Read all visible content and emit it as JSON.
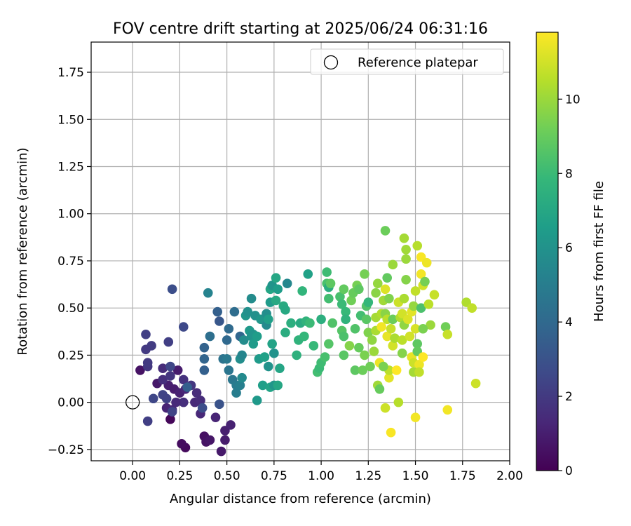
{
  "chart_data": {
    "type": "scatter",
    "title": "FOV centre drift starting at 2025/06/24 06:31:16",
    "xlabel": "Angular distance from reference (arcmin)",
    "ylabel": "Rotation from reference (arcmin)",
    "xlim": [
      -0.22,
      2.0
    ],
    "ylim": [
      -0.31,
      1.91
    ],
    "xticks": [
      0.0,
      0.25,
      0.5,
      0.75,
      1.0,
      1.25,
      1.5,
      1.75,
      2.0
    ],
    "xtick_labels": [
      "0.00",
      "0.25",
      "0.50",
      "0.75",
      "1.00",
      "1.25",
      "1.50",
      "1.75",
      "2.00"
    ],
    "yticks": [
      -0.25,
      0.0,
      0.25,
      0.5,
      0.75,
      1.0,
      1.25,
      1.5,
      1.75
    ],
    "ytick_labels": [
      "−0.25",
      "0.00",
      "0.25",
      "0.50",
      "0.75",
      "1.00",
      "1.25",
      "1.50",
      "1.75"
    ],
    "grid": true,
    "legend": {
      "placement": "top-right",
      "entries": [
        {
          "label": "Reference platepar",
          "marker": "open-circle"
        }
      ]
    },
    "reference_point": {
      "x": 0.0,
      "y": 0.0
    },
    "colorbar": {
      "label": "Hours from first FF file",
      "colormap": "viridis",
      "range": [
        0,
        11.8
      ],
      "ticks": [
        0,
        2,
        4,
        6,
        8,
        10
      ],
      "tick_labels": [
        "0",
        "2",
        "4",
        "6",
        "8",
        "10"
      ]
    },
    "colormap_stops": [
      "#440154",
      "#482878",
      "#3e4a89",
      "#31688e",
      "#26828e",
      "#1f9e89",
      "#35b779",
      "#6ece58",
      "#b5de2b",
      "#fde725"
    ],
    "point_columns": [
      "x",
      "y",
      "hours"
    ],
    "points": [
      [
        0.2,
        -0.09,
        0.2
      ],
      [
        0.28,
        -0.24,
        0.3
      ],
      [
        0.26,
        -0.22,
        0.4
      ],
      [
        0.38,
        -0.18,
        0.5
      ],
      [
        0.39,
        -0.21,
        0.6
      ],
      [
        0.41,
        -0.2,
        0.7
      ],
      [
        0.47,
        -0.26,
        0.8
      ],
      [
        0.49,
        -0.2,
        0.9
      ],
      [
        0.49,
        -0.15,
        1.0
      ],
      [
        0.52,
        -0.12,
        1.1
      ],
      [
        0.44,
        -0.08,
        1.2
      ],
      [
        0.36,
        -0.06,
        1.3
      ],
      [
        0.33,
        0.0,
        1.4
      ],
      [
        0.36,
        0.01,
        1.5
      ],
      [
        0.27,
        0.0,
        1.6
      ],
      [
        0.18,
        -0.03,
        1.2
      ],
      [
        0.21,
        -0.04,
        1.3
      ],
      [
        0.23,
        0.0,
        1.4
      ],
      [
        0.19,
        0.09,
        1.0
      ],
      [
        0.22,
        0.07,
        0.9
      ],
      [
        0.25,
        0.05,
        1.1
      ],
      [
        0.28,
        0.07,
        1.3
      ],
      [
        0.13,
        0.1,
        0.8
      ],
      [
        0.16,
        0.12,
        1.6
      ],
      [
        0.2,
        0.14,
        1.8
      ],
      [
        0.24,
        0.17,
        0.9
      ],
      [
        0.27,
        0.12,
        1.7
      ],
      [
        0.31,
        0.09,
        1.9
      ],
      [
        0.34,
        0.05,
        1.5
      ],
      [
        0.04,
        0.17,
        0.6
      ],
      [
        0.08,
        0.19,
        1.9
      ],
      [
        0.08,
        0.21,
        2.0
      ],
      [
        0.16,
        0.18,
        1.5
      ],
      [
        0.1,
        0.3,
        2.1
      ],
      [
        0.07,
        0.28,
        2.0
      ],
      [
        0.07,
        0.36,
        2.2
      ],
      [
        0.19,
        0.32,
        2.2
      ],
      [
        0.2,
        0.19,
        2.5
      ],
      [
        0.08,
        -0.1,
        2.2
      ],
      [
        0.11,
        0.02,
        2.5
      ],
      [
        0.16,
        0.04,
        2.4
      ],
      [
        0.18,
        0.02,
        2.3
      ],
      [
        0.21,
        -0.05,
        2.4
      ],
      [
        0.29,
        0.08,
        3.6
      ],
      [
        0.37,
        -0.03,
        2.8
      ],
      [
        0.46,
        -0.01,
        3.0
      ],
      [
        0.27,
        0.4,
        2.6
      ],
      [
        0.21,
        0.6,
        2.8
      ],
      [
        0.38,
        0.17,
        3.6
      ],
      [
        0.38,
        0.23,
        3.8
      ],
      [
        0.38,
        0.29,
        3.7
      ],
      [
        0.4,
        0.58,
        5.3
      ],
      [
        0.41,
        0.35,
        4.3
      ],
      [
        0.45,
        0.48,
        3.6
      ],
      [
        0.46,
        0.43,
        3.2
      ],
      [
        0.48,
        0.23,
        4.5
      ],
      [
        0.5,
        0.33,
        4.0
      ],
      [
        0.5,
        0.23,
        4.8
      ],
      [
        0.51,
        0.39,
        4.1
      ],
      [
        0.51,
        0.17,
        4.6
      ],
      [
        0.53,
        0.12,
        4.7
      ],
      [
        0.54,
        0.48,
        4.2
      ],
      [
        0.55,
        0.09,
        4.9
      ],
      [
        0.55,
        0.05,
        5.0
      ],
      [
        0.57,
        0.35,
        3.9
      ],
      [
        0.57,
        0.09,
        5.1
      ],
      [
        0.58,
        0.13,
        5.6
      ],
      [
        0.57,
        0.23,
        5.8
      ],
      [
        0.58,
        0.25,
        5.4
      ],
      [
        0.59,
        0.33,
        5.7
      ],
      [
        0.6,
        0.46,
        6.2
      ],
      [
        0.61,
        0.48,
        5.9
      ],
      [
        0.62,
        0.38,
        6.3
      ],
      [
        0.63,
        0.55,
        5.7
      ],
      [
        0.63,
        0.35,
        6.0
      ],
      [
        0.64,
        0.31,
        6.4
      ],
      [
        0.64,
        0.36,
        6.1
      ],
      [
        0.65,
        0.46,
        5.9
      ],
      [
        0.66,
        0.35,
        6.5
      ],
      [
        0.66,
        0.01,
        6.3
      ],
      [
        0.67,
        0.23,
        6.4
      ],
      [
        0.68,
        0.44,
        6.2
      ],
      [
        0.69,
        0.09,
        6.6
      ],
      [
        0.7,
        0.24,
        6.7
      ],
      [
        0.71,
        0.41,
        5.6
      ],
      [
        0.71,
        0.47,
        5.8
      ],
      [
        0.72,
        0.19,
        6.0
      ],
      [
        0.72,
        0.44,
        6.6
      ],
      [
        0.73,
        0.53,
        6.4
      ],
      [
        0.73,
        0.08,
        6.8
      ],
      [
        0.73,
        0.6,
        6.9
      ],
      [
        0.74,
        0.31,
        6.8
      ],
      [
        0.74,
        0.62,
        6.1
      ],
      [
        0.75,
        0.26,
        6.0
      ],
      [
        0.75,
        0.09,
        6.2
      ],
      [
        0.76,
        0.66,
        7.0
      ],
      [
        0.76,
        0.54,
        7.1
      ],
      [
        0.77,
        0.6,
        6.5
      ],
      [
        0.77,
        0.09,
        7.0
      ],
      [
        0.78,
        0.18,
        6.9
      ],
      [
        0.8,
        0.51,
        7.2
      ],
      [
        0.81,
        0.37,
        7.3
      ],
      [
        0.81,
        0.49,
        7.1
      ],
      [
        0.82,
        0.63,
        5.5
      ],
      [
        0.84,
        0.42,
        7.4
      ],
      [
        0.87,
        0.25,
        7.5
      ],
      [
        0.88,
        0.33,
        7.6
      ],
      [
        0.89,
        0.42,
        7.2
      ],
      [
        0.9,
        0.59,
        7.7
      ],
      [
        0.91,
        0.35,
        7.8
      ],
      [
        0.92,
        0.43,
        7.6
      ],
      [
        0.93,
        0.68,
        6.7
      ],
      [
        0.94,
        0.42,
        8.0
      ],
      [
        0.96,
        0.3,
        7.9
      ],
      [
        0.98,
        0.16,
        8.2
      ],
      [
        0.99,
        0.18,
        8.0
      ],
      [
        1.0,
        0.44,
        7.4
      ],
      [
        1.0,
        0.21,
        8.1
      ],
      [
        1.02,
        0.24,
        8.3
      ],
      [
        1.03,
        0.69,
        8.1
      ],
      [
        1.03,
        0.63,
        8.4
      ],
      [
        1.04,
        0.55,
        8.2
      ],
      [
        1.04,
        0.31,
        8.6
      ],
      [
        1.04,
        0.61,
        7.3
      ],
      [
        1.05,
        0.63,
        8.8
      ],
      [
        1.06,
        0.42,
        8.5
      ],
      [
        1.1,
        0.56,
        8.3
      ],
      [
        1.11,
        0.38,
        8.6
      ],
      [
        1.11,
        0.52,
        8.0
      ],
      [
        1.12,
        0.35,
        8.4
      ],
      [
        1.12,
        0.6,
        8.9
      ],
      [
        1.12,
        0.25,
        8.7
      ],
      [
        1.13,
        0.48,
        7.9
      ],
      [
        1.13,
        0.44,
        7.6
      ],
      [
        1.15,
        0.3,
        9.6
      ],
      [
        1.16,
        0.54,
        9.2
      ],
      [
        1.17,
        0.58,
        9.0
      ],
      [
        1.18,
        0.39,
        8.5
      ],
      [
        1.18,
        0.17,
        8.8
      ],
      [
        1.19,
        0.62,
        9.3
      ],
      [
        1.2,
        0.6,
        8.8
      ],
      [
        1.2,
        0.29,
        9.0
      ],
      [
        1.21,
        0.46,
        8.2
      ],
      [
        1.22,
        0.17,
        9.1
      ],
      [
        1.23,
        0.68,
        9.3
      ],
      [
        1.23,
        0.25,
        9.4
      ],
      [
        1.24,
        0.51,
        8.5
      ],
      [
        1.24,
        0.44,
        8.7
      ],
      [
        1.25,
        0.53,
        7.8
      ],
      [
        1.25,
        0.37,
        9.5
      ],
      [
        1.26,
        0.19,
        9.2
      ],
      [
        1.27,
        0.33,
        9.8
      ],
      [
        1.28,
        0.27,
        10.0
      ],
      [
        1.29,
        0.45,
        10.2
      ],
      [
        1.29,
        0.58,
        9.7
      ],
      [
        1.29,
        0.38,
        10.3
      ],
      [
        1.3,
        0.63,
        9.9
      ],
      [
        1.3,
        0.09,
        10.1
      ],
      [
        1.31,
        0.07,
        9.0
      ],
      [
        1.31,
        0.21,
        11.5
      ],
      [
        1.32,
        0.47,
        10.4
      ],
      [
        1.32,
        0.4,
        11.6
      ],
      [
        1.33,
        0.54,
        10.1
      ],
      [
        1.34,
        0.91,
        9.1
      ],
      [
        1.34,
        0.47,
        9.7
      ],
      [
        1.34,
        0.6,
        11.2
      ],
      [
        1.35,
        0.44,
        10.6
      ],
      [
        1.35,
        0.35,
        11.4
      ],
      [
        1.35,
        0.66,
        8.9
      ],
      [
        1.36,
        0.13,
        11.3
      ],
      [
        1.36,
        0.17,
        10.6
      ],
      [
        1.36,
        0.55,
        9.5
      ],
      [
        1.37,
        0.39,
        10.8
      ],
      [
        1.37,
        -0.16,
        11.7
      ],
      [
        1.38,
        0.73,
        10.0
      ],
      [
        1.38,
        0.3,
        11.0
      ],
      [
        1.38,
        0.44,
        9.1
      ],
      [
        1.39,
        0.34,
        10.3
      ],
      [
        1.4,
        0.17,
        11.8
      ],
      [
        1.41,
        0.53,
        10.9
      ],
      [
        1.41,
        0.0,
        10.5
      ],
      [
        1.42,
        0.45,
        10.4
      ],
      [
        1.43,
        0.33,
        10.6
      ],
      [
        1.43,
        0.26,
        9.6
      ],
      [
        1.43,
        0.47,
        11.0
      ],
      [
        1.44,
        0.55,
        10.3
      ],
      [
        1.44,
        0.87,
        10.2
      ],
      [
        1.44,
        0.41,
        9.8
      ],
      [
        1.45,
        0.81,
        10.1
      ],
      [
        1.45,
        0.76,
        10.0
      ],
      [
        1.45,
        0.65,
        9.6
      ],
      [
        1.46,
        0.44,
        11.2
      ],
      [
        1.47,
        0.35,
        11.0
      ],
      [
        1.48,
        0.24,
        11.4
      ],
      [
        1.48,
        0.48,
        11.3
      ],
      [
        1.49,
        0.21,
        10.9
      ],
      [
        1.49,
        0.16,
        10.2
      ],
      [
        1.49,
        0.51,
        9.9
      ],
      [
        1.5,
        0.39,
        11.1
      ],
      [
        1.5,
        0.59,
        10.7
      ],
      [
        1.51,
        0.83,
        10.5
      ],
      [
        1.51,
        0.31,
        8.8
      ],
      [
        1.51,
        0.27,
        8.9
      ],
      [
        1.52,
        0.2,
        11.5
      ],
      [
        1.52,
        0.16,
        10.7
      ],
      [
        1.53,
        0.68,
        11.6
      ],
      [
        1.53,
        0.5,
        8.4
      ],
      [
        1.53,
        0.77,
        11.7
      ],
      [
        1.54,
        0.62,
        11.0
      ],
      [
        1.54,
        0.24,
        11.8
      ],
      [
        1.55,
        0.64,
        9.3
      ],
      [
        1.56,
        0.74,
        11.5
      ],
      [
        1.57,
        0.52,
        10.6
      ],
      [
        1.58,
        0.41,
        10.0
      ],
      [
        1.6,
        0.57,
        10.8
      ],
      [
        1.54,
        0.39,
        9.4
      ],
      [
        1.66,
        0.4,
        9.2
      ],
      [
        1.67,
        0.36,
        10.8
      ],
      [
        1.67,
        -0.04,
        11.6
      ],
      [
        1.77,
        0.53,
        10.4
      ],
      [
        1.8,
        0.5,
        10.7
      ],
      [
        1.82,
        0.1,
        10.9
      ],
      [
        1.5,
        -0.08,
        11.6
      ],
      [
        1.34,
        -0.03,
        10.9
      ],
      [
        1.33,
        0.19,
        9.4
      ]
    ]
  }
}
